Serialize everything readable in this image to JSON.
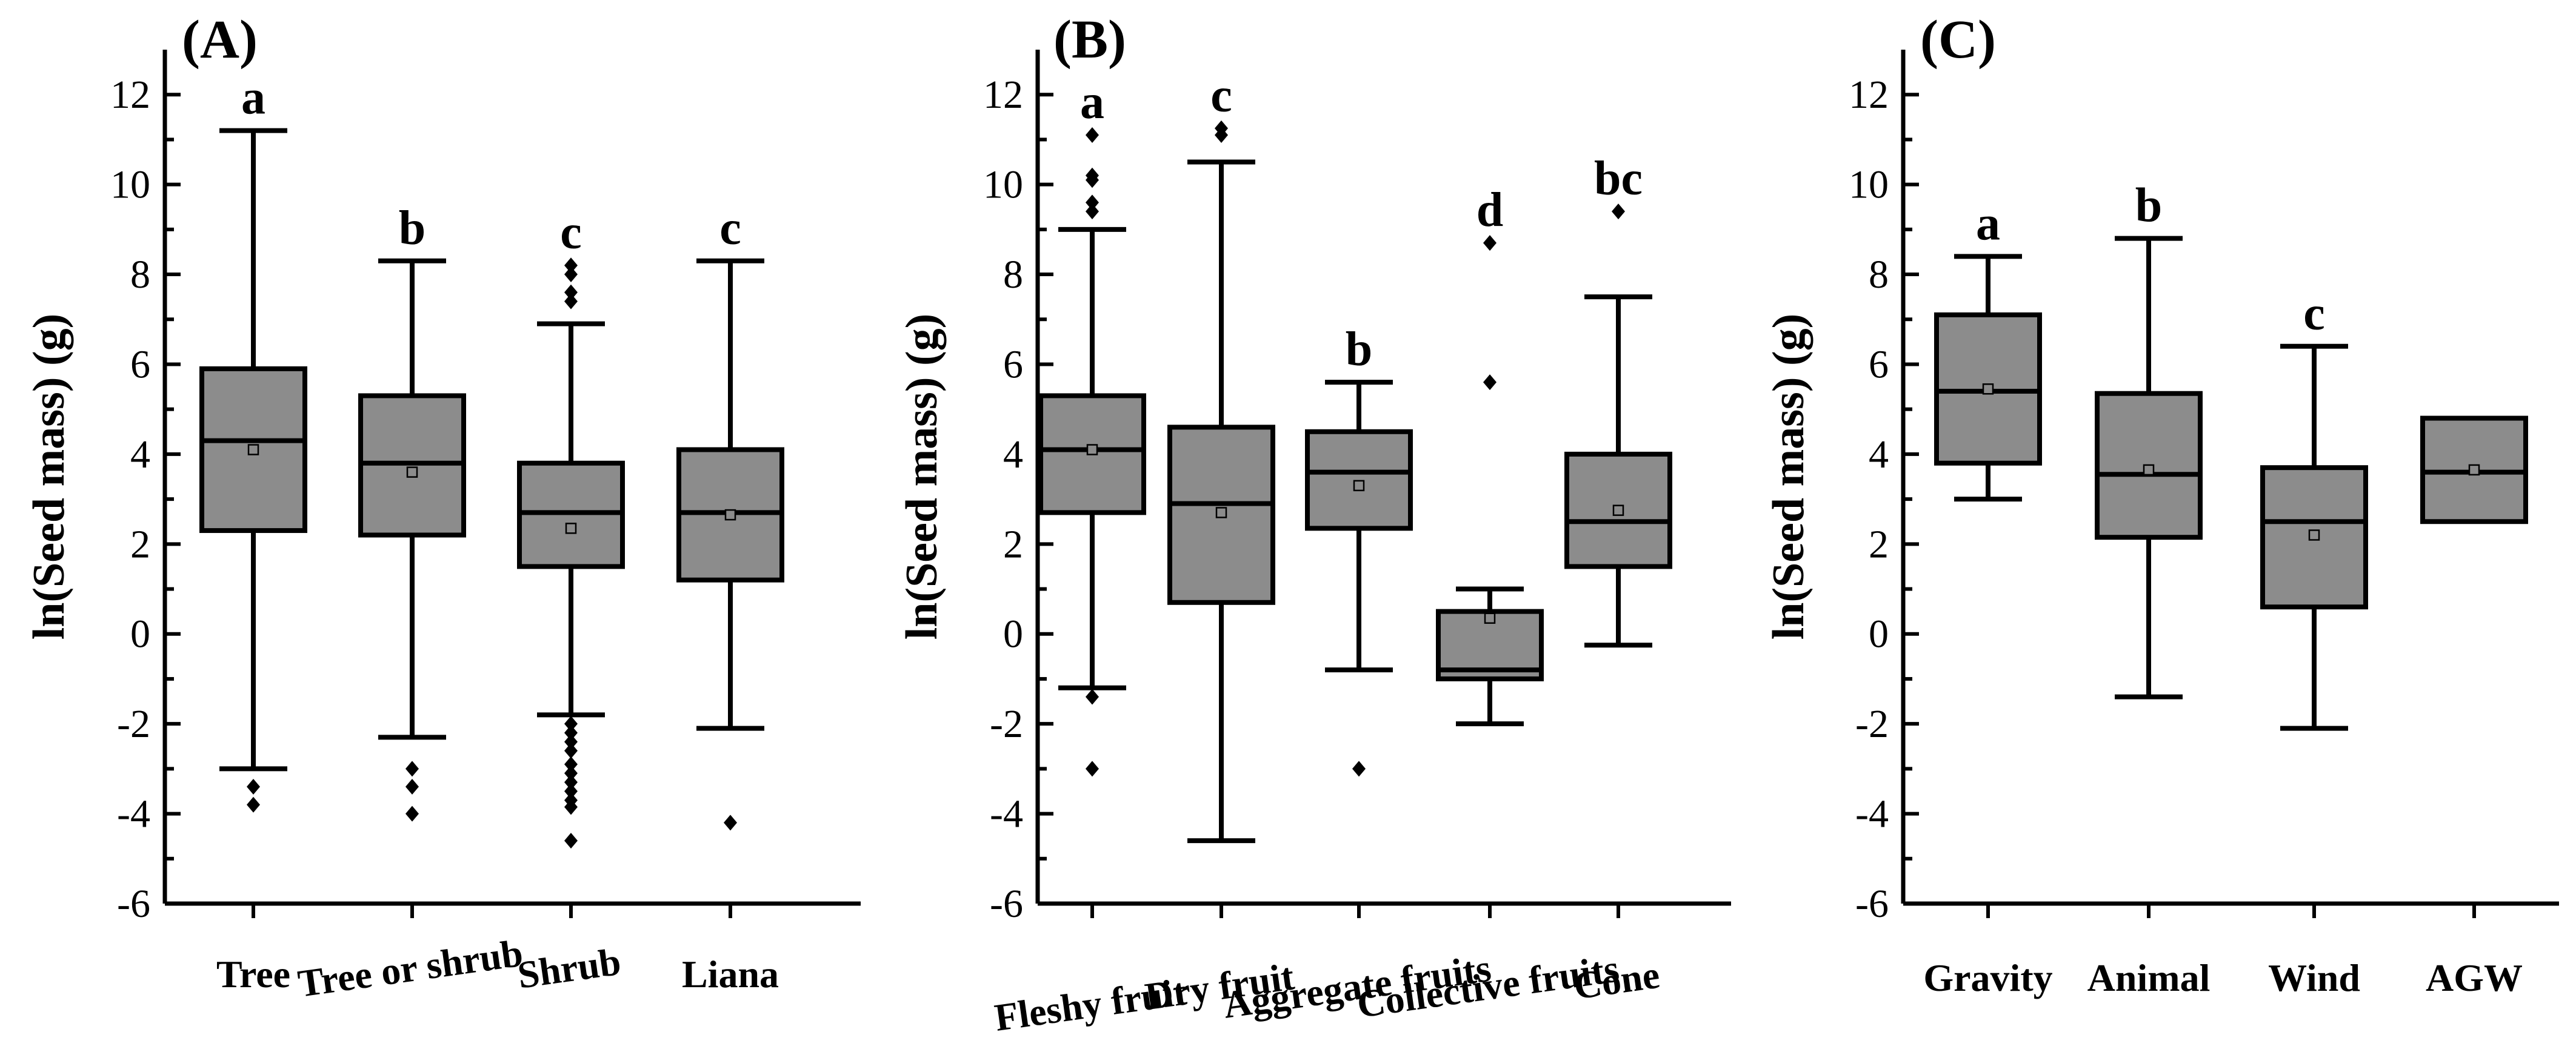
{
  "chart_data": [
    {
      "type": "box",
      "panel_label": "(A)",
      "ylabel": "ln(Seed mass) (g)",
      "ylim": [
        -6,
        13
      ],
      "yticks": [
        -6,
        -4,
        -2,
        0,
        2,
        4,
        6,
        8,
        10,
        12
      ],
      "ytick_labels": [
        "-6",
        "-4",
        "-2",
        "0",
        "2",
        "4",
        "6",
        "8",
        "10",
        "12"
      ],
      "categories": [
        "Tree",
        "Tree or shrub",
        "Shrub",
        "Liana"
      ],
      "category_label_rotation": [
        0,
        -8,
        -8,
        0
      ],
      "boxes": [
        {
          "name": "Tree",
          "whisker_low": -3.0,
          "q1": 2.3,
          "median": 4.3,
          "q3": 5.9,
          "whisker_high": 11.2,
          "mean": 4.1,
          "outliers": [
            -3.4,
            -3.8
          ],
          "letter": "a"
        },
        {
          "name": "Tree or shrub",
          "whisker_low": -2.3,
          "q1": 2.2,
          "median": 3.8,
          "q3": 5.3,
          "whisker_high": 8.3,
          "mean": 3.6,
          "outliers": [
            -3.0,
            -3.4,
            -4.0
          ],
          "letter": "b"
        },
        {
          "name": "Shrub",
          "whisker_low": -1.8,
          "q1": 1.5,
          "median": 2.7,
          "q3": 3.8,
          "whisker_high": 6.9,
          "mean": 2.35,
          "outliers": [
            7.4,
            7.6,
            8.0,
            8.2,
            -2.0,
            -2.2,
            -2.4,
            -2.6,
            -2.9,
            -3.1,
            -3.3,
            -3.5,
            -3.7,
            -3.85,
            -4.6
          ],
          "letter": "c"
        },
        {
          "name": "Liana",
          "whisker_low": -2.1,
          "q1": 1.2,
          "median": 2.7,
          "q3": 4.1,
          "whisker_high": 8.3,
          "mean": 2.65,
          "outliers": [
            -4.2
          ],
          "letter": "c"
        }
      ]
    },
    {
      "type": "box",
      "panel_label": "(B)",
      "ylabel": "ln(Seed mass) (g)",
      "ylim": [
        -6,
        13
      ],
      "yticks": [
        -6,
        -4,
        -2,
        0,
        2,
        4,
        6,
        8,
        10,
        12
      ],
      "ytick_labels": [
        "-6",
        "-4",
        "-2",
        "0",
        "2",
        "4",
        "6",
        "8",
        "10",
        "12"
      ],
      "categories": [
        "Fleshy fruit",
        "Dry fruit",
        "Aggregate fruits",
        "Collective fruits",
        "Cone"
      ],
      "category_label_rotation": [
        -8,
        -8,
        -8,
        -8,
        -8
      ],
      "boxes": [
        {
          "name": "Fleshy fruit",
          "whisker_low": -1.2,
          "q1": 2.7,
          "median": 4.1,
          "q3": 5.3,
          "whisker_high": 9.0,
          "mean": 4.1,
          "outliers": [
            9.4,
            9.6,
            10.1,
            10.2,
            11.1,
            -1.4,
            -3.0
          ],
          "letter": "a"
        },
        {
          "name": "Dry fruit",
          "whisker_low": -4.6,
          "q1": 0.7,
          "median": 2.9,
          "q3": 4.6,
          "whisker_high": 10.5,
          "mean": 2.7,
          "outliers": [
            11.1,
            11.25
          ],
          "letter": "c"
        },
        {
          "name": "Aggregate fruits",
          "whisker_low": -0.8,
          "q1": 2.35,
          "median": 3.6,
          "q3": 4.5,
          "whisker_high": 5.6,
          "mean": 3.3,
          "outliers": [
            -3.0
          ],
          "letter": "b"
        },
        {
          "name": "Collective fruits",
          "whisker_low": -2.0,
          "q1": -1.0,
          "median": -0.8,
          "q3": 0.5,
          "whisker_high": 1.0,
          "mean": 0.35,
          "outliers": [
            8.7,
            5.6
          ],
          "letter": "d"
        },
        {
          "name": "Cone",
          "whisker_low": -0.25,
          "q1": 1.5,
          "median": 2.5,
          "q3": 4.0,
          "whisker_high": 7.5,
          "mean": 2.75,
          "outliers": [
            9.4
          ],
          "letter": "bc"
        }
      ]
    },
    {
      "type": "box",
      "panel_label": "(C)",
      "ylabel": "ln(Seed mass) (g)",
      "ylim": [
        -6,
        13
      ],
      "yticks": [
        -6,
        -4,
        -2,
        0,
        2,
        4,
        6,
        8,
        10,
        12
      ],
      "ytick_labels": [
        "-6",
        "-4",
        "-2",
        "0",
        "2",
        "4",
        "6",
        "8",
        "10",
        "12"
      ],
      "categories": [
        "Gravity",
        "Animal",
        "Wind",
        "AGW"
      ],
      "category_label_rotation": [
        0,
        0,
        0,
        0
      ],
      "boxes": [
        {
          "name": "Gravity",
          "whisker_low": 3.0,
          "q1": 3.8,
          "median": 5.4,
          "q3": 7.1,
          "whisker_high": 8.4,
          "mean": 5.45,
          "outliers": [],
          "letter": "a"
        },
        {
          "name": "Animal",
          "whisker_low": -1.4,
          "q1": 2.15,
          "median": 3.55,
          "q3": 5.35,
          "whisker_high": 8.8,
          "mean": 3.65,
          "outliers": [],
          "letter": "b"
        },
        {
          "name": "Wind",
          "whisker_low": -2.1,
          "q1": 0.6,
          "median": 2.5,
          "q3": 3.7,
          "whisker_high": 6.4,
          "mean": 2.2,
          "outliers": [],
          "letter": "c"
        },
        {
          "name": "AGW",
          "whisker_low": null,
          "q1": 2.5,
          "median": 3.6,
          "q3": 4.8,
          "whisker_high": null,
          "mean": 3.65,
          "outliers": [],
          "letter": ""
        }
      ]
    }
  ],
  "colors": {
    "box_fill": "#8c8c8c",
    "stroke": "#000000",
    "mean_marker_fill": "#8c8c8c"
  }
}
